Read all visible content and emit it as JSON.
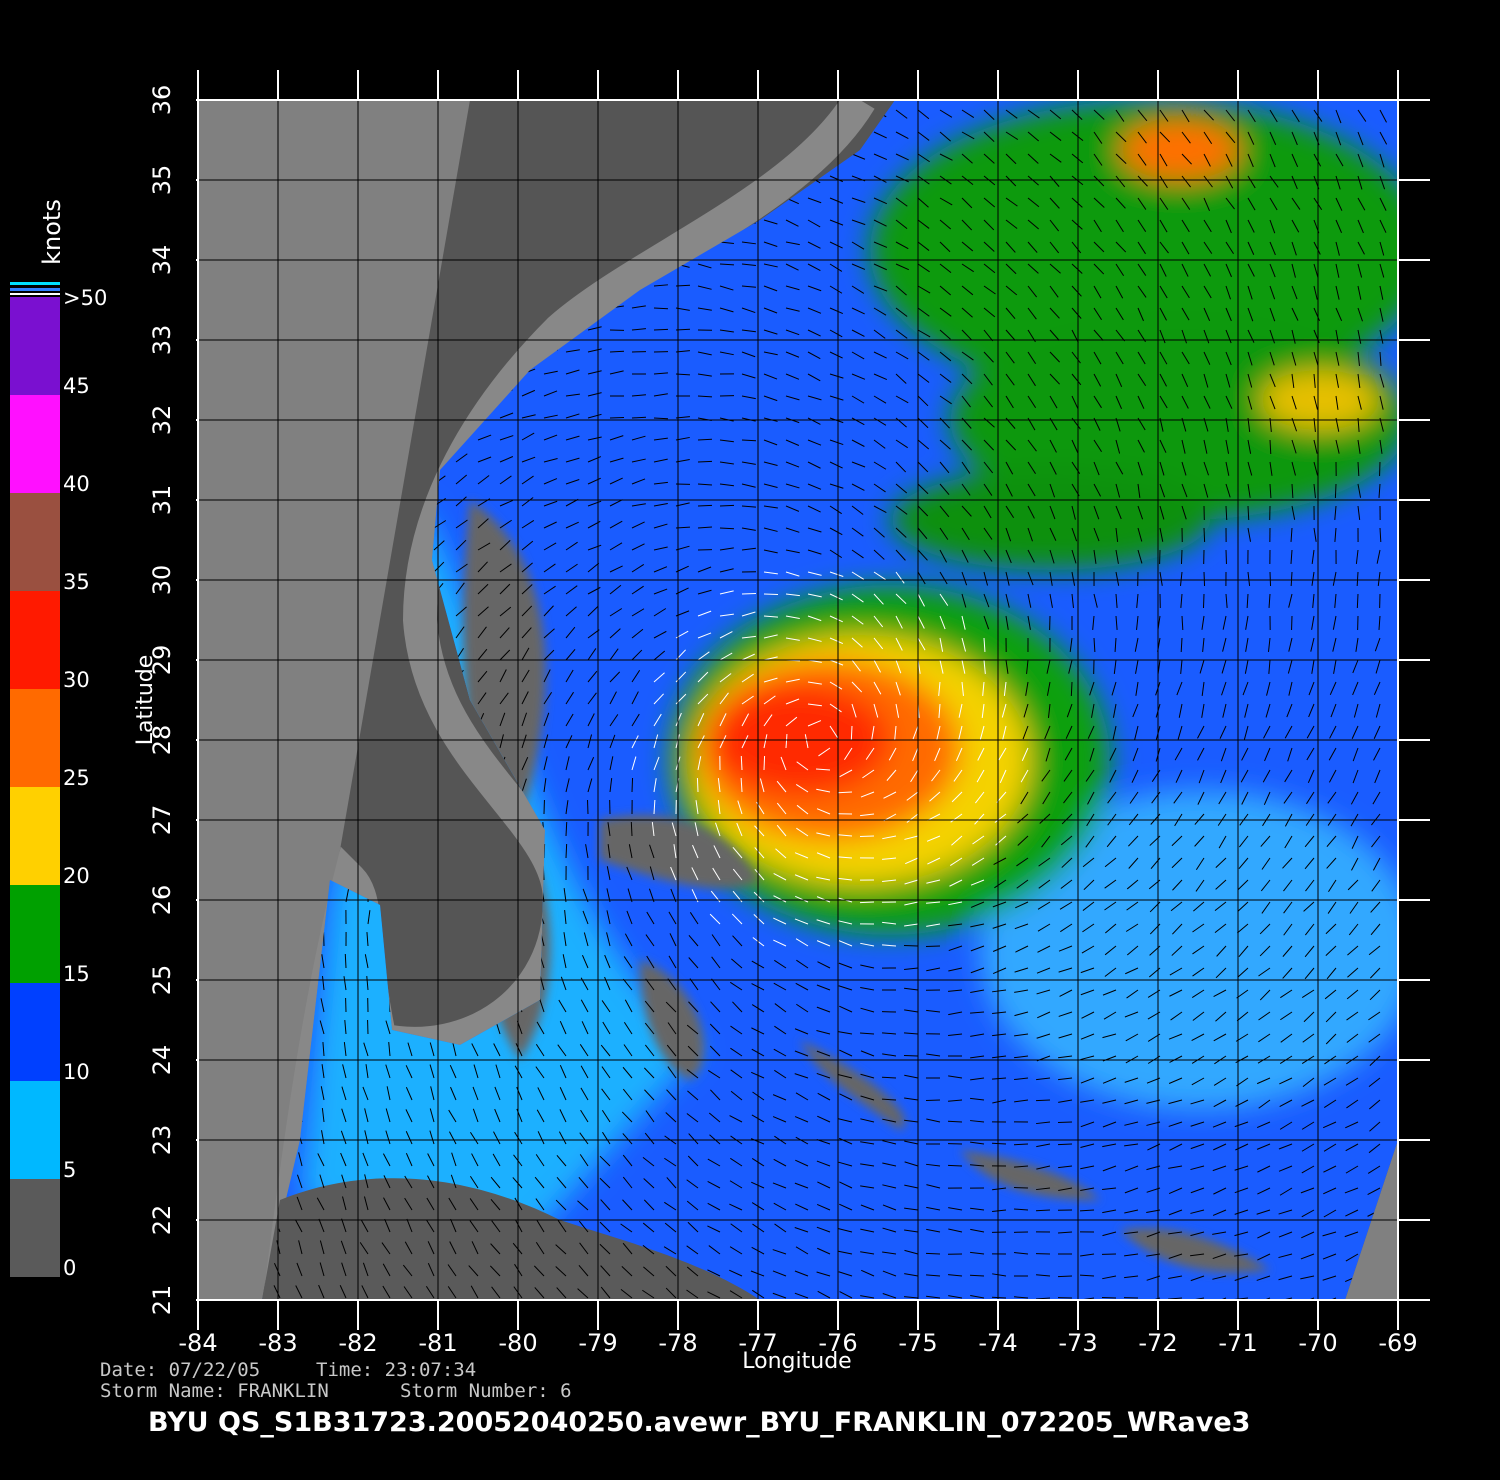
{
  "chart_data": {
    "type": "map",
    "xlabel": "Longitude",
    "ylabel": "Latitude",
    "xlim": [
      -84,
      -69
    ],
    "ylim": [
      21,
      36
    ],
    "xticks": [
      -84,
      -83,
      -82,
      -81,
      -80,
      -79,
      -78,
      -77,
      -76,
      -75,
      -74,
      -73,
      -72,
      -71,
      -70,
      -69
    ],
    "yticks": [
      21,
      22,
      23,
      24,
      25,
      26,
      27,
      28,
      29,
      30,
      31,
      32,
      33,
      34,
      35,
      36
    ],
    "grid": true,
    "colorbar": {
      "label": "knots",
      "ticks": [
        0,
        5,
        10,
        15,
        20,
        25,
        30,
        35,
        40,
        45,
        {
          "value": 50,
          "label": ">50"
        }
      ],
      "colors": [
        "#5a5a5a",
        "#00b8ff",
        "#0040ff",
        "#00a000",
        "#ffd000",
        "#ff6a00",
        "#ff1a00",
        "#9a5040",
        "#ff10ff",
        "#7a10d0"
      ]
    },
    "date": "Date: 07/22/05",
    "time": "Time: 23:07:34",
    "storm_name": "Storm Name: FRANKLIN",
    "storm_number": "Storm Number: 6",
    "title": "BYU QS_S1B31723.20052040250.avewr_BYU_FRANKLIN_072205_WRave3"
  }
}
